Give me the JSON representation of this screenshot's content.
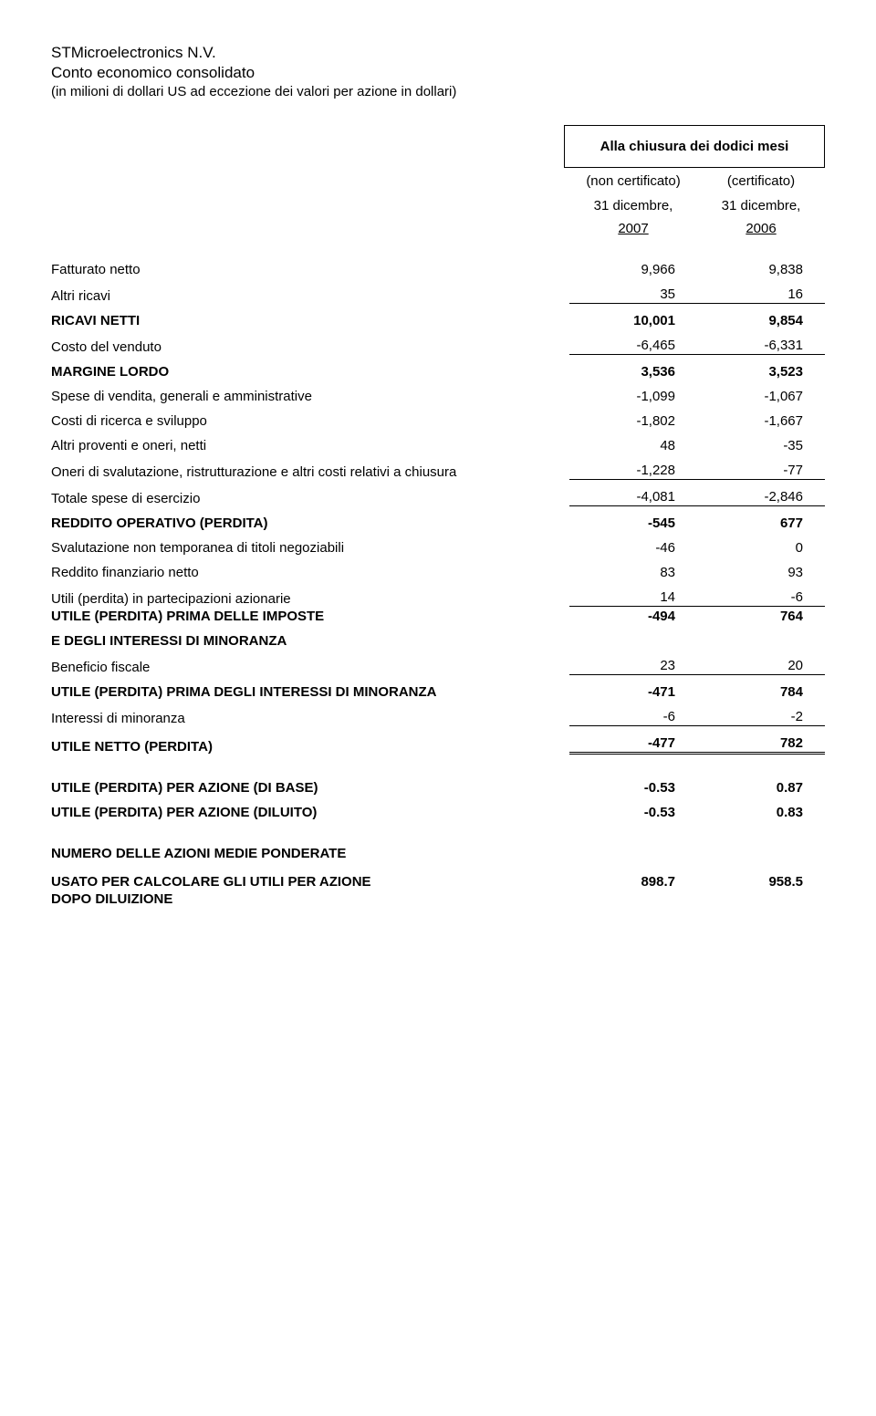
{
  "header": {
    "company": "STMicroelectronics N.V.",
    "subtitle": "Conto economico consolidato",
    "note": "(in milioni di dollari US ad eccezione dei valori per azione in dollari)",
    "period_box": "Alla chiusura dei dodici mesi",
    "cert1": "(non certificato)",
    "cert2": "(certificato)",
    "date1": "31 dicembre,",
    "date2": "31 dicembre,",
    "year1": "2007",
    "year2": "2006"
  },
  "rows": {
    "fatturato": {
      "label": "Fatturato netto",
      "v1": "9,966",
      "v2": "9,838"
    },
    "altri_ricavi": {
      "label": "Altri ricavi",
      "v1": "35",
      "v2": "16"
    },
    "ricavi_netti": {
      "label": "RICAVI NETTI",
      "v1": "10,001",
      "v2": "9,854"
    },
    "costo_venduto": {
      "label": "Costo del venduto",
      "v1": "-6,465",
      "v2": "-6,331"
    },
    "margine_lordo": {
      "label": "MARGINE LORDO",
      "v1": "3,536",
      "v2": "3,523"
    },
    "spese_vendita": {
      "label": "Spese di vendita, generali e amministrative",
      "v1": "-1,099",
      "v2": "-1,067"
    },
    "costi_ricerca": {
      "label": "Costi di ricerca e sviluppo",
      "v1": "-1,802",
      "v2": "-1,667"
    },
    "altri_proventi": {
      "label": "Altri proventi e oneri, netti",
      "v1": "48",
      "v2": "-35"
    },
    "oneri_svalutazione": {
      "label": "Oneri di svalutazione, ristrutturazione e altri costi relativi a chiusura",
      "v1": "-1,228",
      "v2": "-77"
    },
    "totale_spese": {
      "label": "Totale spese di esercizio",
      "v1": "-4,081",
      "v2": "-2,846"
    },
    "reddito_operativo": {
      "label": "REDDITO OPERATIVO (PERDITA)",
      "v1": "-545",
      "v2": "677"
    },
    "svalutazione_titoli": {
      "label": "Svalutazione non temporanea di titoli negoziabili",
      "v1": "-46",
      "v2": "0"
    },
    "reddito_finanziario": {
      "label": "Reddito finanziario netto",
      "v1": "83",
      "v2": "93"
    },
    "utili_partecipazioni": {
      "label": "Utili (perdita) in partecipazioni azionarie",
      "v1": "14",
      "v2": "-6"
    },
    "utile_prima_imposte": {
      "label": "UTILE (PERDITA) PRIMA DELLE IMPOSTE",
      "v1": "-494",
      "v2": "764"
    },
    "e_degli_interessi": {
      "label": "E DEGLI INTERESSI DI MINORANZA"
    },
    "beneficio_fiscale": {
      "label": "Beneficio fiscale",
      "v1": "23",
      "v2": "20"
    },
    "utile_prima_minoranza": {
      "label": "UTILE (PERDITA) PRIMA DEGLI INTERESSI DI MINORANZA",
      "v1": "-471",
      "v2": "784"
    },
    "interessi_minoranza": {
      "label": "Interessi di minoranza",
      "v1": "-6",
      "v2": "-2"
    },
    "utile_netto": {
      "label": "UTILE NETTO (PERDITA)",
      "v1": "-477",
      "v2": "782"
    },
    "eps_base": {
      "label": "UTILE (PERDITA) PER AZIONE (DI BASE)",
      "v1": "-0.53",
      "v2": "0.87"
    },
    "eps_diluito": {
      "label": "UTILE (PERDITA) PER AZIONE (DILUITO)",
      "v1": "-0.53",
      "v2": "0.83"
    },
    "numero_azioni_hdr": {
      "label": "NUMERO DELLE AZIONI MEDIE PONDERATE"
    },
    "usato_calcolare": {
      "label": "USATO PER CALCOLARE GLI UTILI PER AZIONE",
      "v1": "898.7",
      "v2": "958.5"
    },
    "dopo_diluizione": {
      "label": "DOPO DILUIZIONE"
    }
  }
}
